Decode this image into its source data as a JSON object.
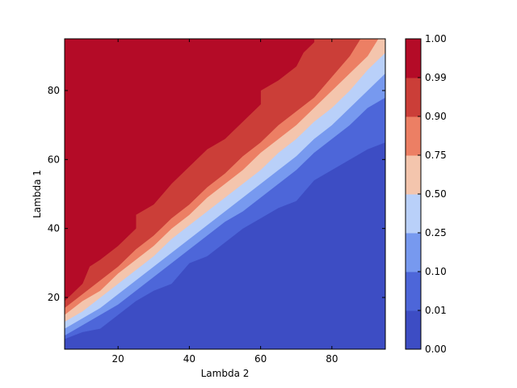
{
  "chart_data": {
    "type": "contour",
    "title": "",
    "xlabel": "Lambda 2",
    "ylabel": "Lambda 1",
    "xlim": [
      5,
      95
    ],
    "ylim": [
      5,
      95
    ],
    "xticks": [
      "20",
      "40",
      "60",
      "80"
    ],
    "yticks": [
      "20",
      "40",
      "60",
      "80"
    ],
    "grid": false,
    "colormap": "coolwarm",
    "levels": [
      "0.00",
      "0.01",
      "0.10",
      "0.25",
      "0.50",
      "0.75",
      "0.90",
      "0.99",
      "1.00"
    ],
    "band_colors": [
      "#3d4dc4",
      "#4d66d9",
      "#7799ef",
      "#b9d0f9",
      "#f4c5ad",
      "#ec7f64",
      "#cb3e38",
      "#b40b27"
    ],
    "contours": [
      {
        "level": "0.01",
        "points": [
          [
            5,
            8
          ],
          [
            10,
            10
          ],
          [
            15,
            11
          ],
          [
            20,
            15
          ],
          [
            25,
            19
          ],
          [
            30,
            22
          ],
          [
            35,
            24
          ],
          [
            40,
            30
          ],
          [
            45,
            32
          ],
          [
            50,
            36
          ],
          [
            55,
            40
          ],
          [
            60,
            43
          ],
          [
            65,
            46
          ],
          [
            70,
            48
          ],
          [
            75,
            54
          ],
          [
            80,
            57
          ],
          [
            85,
            60
          ],
          [
            90,
            63
          ],
          [
            95,
            65
          ]
        ]
      },
      {
        "level": "0.10",
        "points": [
          [
            5,
            9
          ],
          [
            10,
            12
          ],
          [
            15,
            15
          ],
          [
            20,
            18
          ],
          [
            25,
            22
          ],
          [
            30,
            26
          ],
          [
            35,
            30
          ],
          [
            40,
            34
          ],
          [
            45,
            38
          ],
          [
            50,
            42
          ],
          [
            55,
            45
          ],
          [
            60,
            49
          ],
          [
            65,
            53
          ],
          [
            70,
            57
          ],
          [
            75,
            62
          ],
          [
            80,
            66
          ],
          [
            85,
            70
          ],
          [
            90,
            75
          ],
          [
            95,
            78
          ]
        ]
      },
      {
        "level": "0.25",
        "points": [
          [
            5,
            11
          ],
          [
            10,
            14
          ],
          [
            15,
            17
          ],
          [
            20,
            21
          ],
          [
            25,
            25
          ],
          [
            30,
            29
          ],
          [
            35,
            33
          ],
          [
            40,
            37
          ],
          [
            45,
            41
          ],
          [
            50,
            45
          ],
          [
            55,
            49
          ],
          [
            60,
            53
          ],
          [
            65,
            57
          ],
          [
            70,
            61
          ],
          [
            75,
            66
          ],
          [
            80,
            70
          ],
          [
            85,
            75
          ],
          [
            90,
            80
          ],
          [
            95,
            85
          ]
        ]
      },
      {
        "level": "0.50",
        "points": [
          [
            5,
            13
          ],
          [
            10,
            16
          ],
          [
            15,
            20
          ],
          [
            20,
            24
          ],
          [
            25,
            28
          ],
          [
            30,
            32
          ],
          [
            35,
            37
          ],
          [
            40,
            41
          ],
          [
            45,
            45
          ],
          [
            50,
            49
          ],
          [
            55,
            53
          ],
          [
            60,
            57
          ],
          [
            65,
            62
          ],
          [
            70,
            66
          ],
          [
            75,
            71
          ],
          [
            80,
            75
          ],
          [
            85,
            80
          ],
          [
            90,
            86
          ],
          [
            95,
            91
          ]
        ]
      },
      {
        "level": "0.75",
        "points": [
          [
            5,
            15
          ],
          [
            10,
            19
          ],
          [
            15,
            22
          ],
          [
            20,
            27
          ],
          [
            25,
            31
          ],
          [
            30,
            35
          ],
          [
            35,
            40
          ],
          [
            40,
            44
          ],
          [
            45,
            49
          ],
          [
            50,
            53
          ],
          [
            55,
            57
          ],
          [
            60,
            62
          ],
          [
            65,
            66
          ],
          [
            70,
            70
          ],
          [
            75,
            75
          ],
          [
            80,
            80
          ],
          [
            85,
            85
          ],
          [
            90,
            90
          ],
          [
            93,
            95
          ]
        ]
      },
      {
        "level": "0.90",
        "points": [
          [
            5,
            17
          ],
          [
            10,
            21
          ],
          [
            15,
            25
          ],
          [
            20,
            29
          ],
          [
            25,
            34
          ],
          [
            30,
            38
          ],
          [
            35,
            43
          ],
          [
            40,
            47
          ],
          [
            45,
            52
          ],
          [
            50,
            56
          ],
          [
            55,
            61
          ],
          [
            60,
            65
          ],
          [
            65,
            70
          ],
          [
            70,
            74
          ],
          [
            75,
            78
          ],
          [
            80,
            84
          ],
          [
            85,
            90
          ],
          [
            88,
            95
          ]
        ]
      },
      {
        "level": "0.99",
        "points": [
          [
            5,
            19
          ],
          [
            10,
            24
          ],
          [
            12,
            29
          ],
          [
            15,
            31
          ],
          [
            20,
            35
          ],
          [
            25,
            40
          ],
          [
            25,
            44
          ],
          [
            30,
            47
          ],
          [
            35,
            53
          ],
          [
            40,
            58
          ],
          [
            45,
            63
          ],
          [
            50,
            66
          ],
          [
            55,
            71
          ],
          [
            60,
            76
          ],
          [
            60,
            80
          ],
          [
            65,
            83
          ],
          [
            70,
            87
          ],
          [
            72,
            91
          ],
          [
            75,
            94
          ],
          [
            75,
            95
          ]
        ]
      }
    ]
  }
}
